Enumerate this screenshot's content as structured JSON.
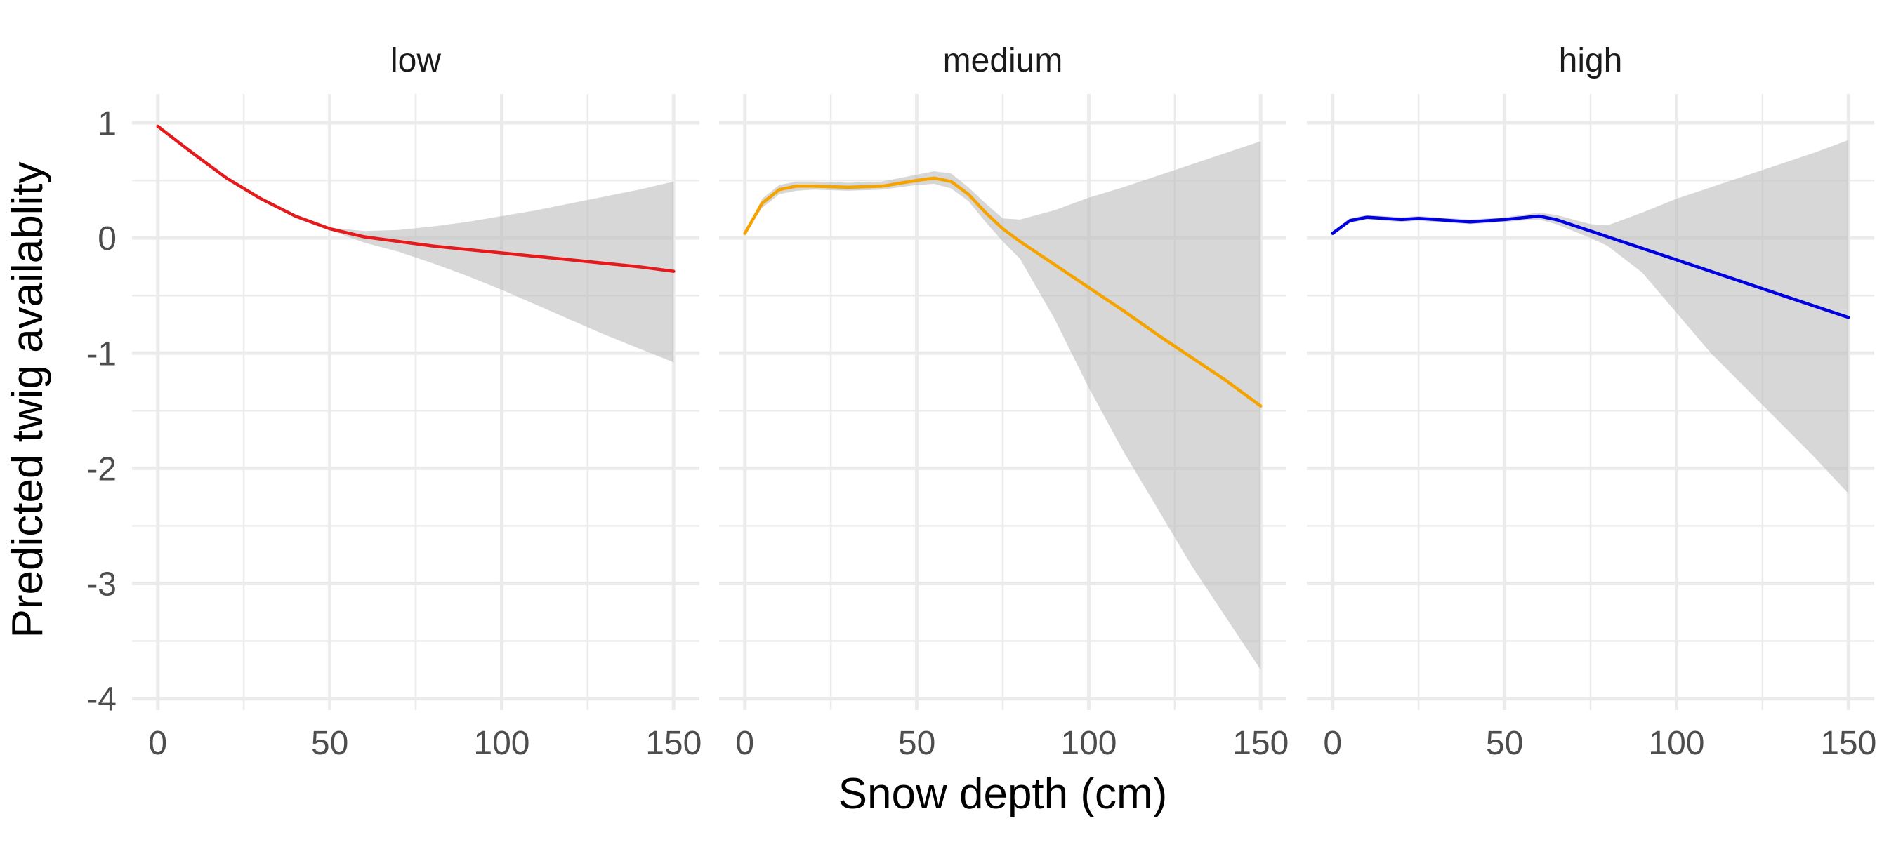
{
  "chart_data": {
    "type": "line",
    "facet_by": "snow level",
    "xlabel": "Snow depth (cm)",
    "ylabel": "Predicted twig availablity",
    "xlim": [
      -7.5,
      157.5
    ],
    "ylim": [
      -4.1,
      1.25
    ],
    "x_ticks": [
      0,
      50,
      100,
      150
    ],
    "x_tick_labels": [
      "0",
      "50",
      "100",
      "150"
    ],
    "y_ticks": [
      1,
      0,
      -1,
      -2,
      -3,
      -4
    ],
    "y_tick_labels": [
      "1",
      "0",
      "-1",
      "-2",
      "-3",
      "-4"
    ],
    "grid": true,
    "legend": "none",
    "panels": [
      {
        "label": "low",
        "color": "#e41a1c",
        "x": [
          0,
          10,
          20,
          30,
          40,
          50,
          60,
          70,
          80,
          90,
          100,
          110,
          120,
          130,
          140,
          150
        ],
        "y": [
          0.97,
          0.74,
          0.52,
          0.34,
          0.19,
          0.08,
          0.01,
          -0.03,
          -0.07,
          -0.1,
          -0.13,
          -0.16,
          -0.19,
          -0.22,
          -0.25,
          -0.29
        ],
        "lower": [
          0.97,
          0.74,
          0.52,
          0.34,
          0.19,
          0.07,
          -0.04,
          -0.12,
          -0.22,
          -0.33,
          -0.45,
          -0.58,
          -0.71,
          -0.84,
          -0.96,
          -1.08
        ],
        "upper": [
          0.97,
          0.74,
          0.52,
          0.34,
          0.19,
          0.09,
          0.06,
          0.07,
          0.1,
          0.14,
          0.19,
          0.24,
          0.3,
          0.36,
          0.42,
          0.49
        ]
      },
      {
        "label": "medium",
        "color": "#f5a300",
        "x": [
          0,
          5,
          10,
          15,
          20,
          30,
          40,
          50,
          55,
          60,
          65,
          70,
          75,
          80,
          90,
          100,
          110,
          120,
          130,
          140,
          150
        ],
        "y": [
          0.04,
          0.3,
          0.42,
          0.45,
          0.45,
          0.44,
          0.45,
          0.5,
          0.52,
          0.49,
          0.38,
          0.22,
          0.08,
          -0.03,
          -0.23,
          -0.43,
          -0.63,
          -0.84,
          -1.04,
          -1.24,
          -1.46
        ],
        "lower": [
          0.04,
          0.26,
          0.38,
          0.41,
          0.42,
          0.41,
          0.42,
          0.46,
          0.47,
          0.43,
          0.32,
          0.14,
          -0.03,
          -0.18,
          -0.7,
          -1.3,
          -1.85,
          -2.35,
          -2.85,
          -3.3,
          -3.75
        ],
        "upper": [
          0.04,
          0.34,
          0.46,
          0.49,
          0.49,
          0.48,
          0.49,
          0.55,
          0.58,
          0.56,
          0.44,
          0.3,
          0.17,
          0.16,
          0.24,
          0.35,
          0.44,
          0.54,
          0.64,
          0.74,
          0.84
        ]
      },
      {
        "label": "high",
        "color": "#0000e0",
        "x": [
          0,
          5,
          10,
          15,
          20,
          25,
          30,
          40,
          50,
          60,
          65,
          70,
          75,
          80,
          90,
          100,
          110,
          120,
          130,
          140,
          150
        ],
        "y": [
          0.04,
          0.15,
          0.18,
          0.17,
          0.16,
          0.17,
          0.16,
          0.14,
          0.16,
          0.19,
          0.16,
          0.11,
          0.06,
          0.01,
          -0.09,
          -0.19,
          -0.29,
          -0.39,
          -0.49,
          -0.59,
          -0.69
        ],
        "lower": [
          0.04,
          0.13,
          0.16,
          0.15,
          0.14,
          0.15,
          0.14,
          0.12,
          0.14,
          0.16,
          0.12,
          0.06,
          0.0,
          -0.07,
          -0.3,
          -0.65,
          -1.0,
          -1.3,
          -1.6,
          -1.9,
          -2.22
        ],
        "upper": [
          0.04,
          0.17,
          0.2,
          0.19,
          0.18,
          0.19,
          0.18,
          0.16,
          0.18,
          0.22,
          0.2,
          0.16,
          0.12,
          0.11,
          0.22,
          0.34,
          0.44,
          0.54,
          0.64,
          0.74,
          0.85
        ]
      }
    ]
  }
}
